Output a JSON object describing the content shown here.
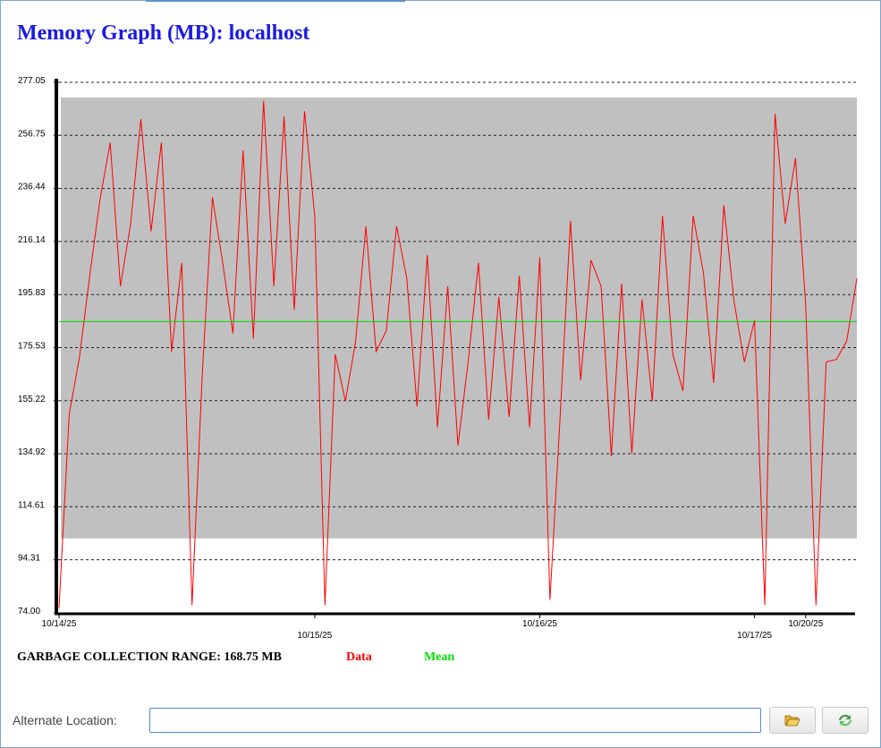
{
  "page": {
    "title": "Memory Graph (MB): localhost"
  },
  "legend": {
    "gc_range": "GARBAGE COLLECTION RANGE: 168.75 MB",
    "data_label": "Data",
    "mean_label": "Mean",
    "data_color": "#ff0000",
    "mean_color": "#00dd00"
  },
  "alt_location": {
    "label": "Alternate Location:",
    "value": ""
  },
  "buttons": {
    "open_icon": "folder-open-icon",
    "refresh_icon": "refresh-icon"
  },
  "chart_data": {
    "type": "line",
    "title": "Memory Graph (MB): localhost",
    "xlabel": "",
    "ylabel": "",
    "ylim": [
      74.0,
      277.05
    ],
    "y_ticks": [
      "74.00",
      "94.31",
      "114.61",
      "134.92",
      "155.22",
      "175.53",
      "195.83",
      "216.14",
      "236.44",
      "256.75",
      "277.05"
    ],
    "x_tick_labels": [
      {
        "label": "10/14/25",
        "index": 0,
        "row": 0
      },
      {
        "label": "10/15/25",
        "index": 25,
        "row": 1
      },
      {
        "label": "10/16/25",
        "index": 47,
        "row": 0
      },
      {
        "label": "10/17/25",
        "index": 68,
        "row": 1
      },
      {
        "label": "10/20/25",
        "index": 73,
        "row": 0
      }
    ],
    "gc_range": {
      "min": 102.5,
      "max": 271.25
    },
    "mean": 185.5,
    "grid": true,
    "series": [
      {
        "name": "Data",
        "color": "#ff0000",
        "values": [
          76,
          150,
          172,
          203,
          232,
          254,
          199,
          223,
          263,
          220,
          254,
          174,
          208,
          77,
          165,
          233,
          208,
          181,
          251,
          179,
          270,
          199,
          264,
          190,
          266,
          226,
          77,
          173,
          155,
          178,
          222,
          174,
          182,
          222,
          202,
          153,
          211,
          145,
          199,
          138,
          170,
          208,
          148,
          195,
          149,
          203,
          145,
          210,
          79,
          150,
          224,
          163,
          209,
          199,
          134,
          200,
          135,
          194,
          155,
          226,
          173,
          159,
          226,
          204,
          162,
          230,
          193,
          170,
          186,
          77,
          265,
          223,
          248,
          192,
          77,
          170,
          171,
          178,
          202
        ]
      }
    ]
  }
}
